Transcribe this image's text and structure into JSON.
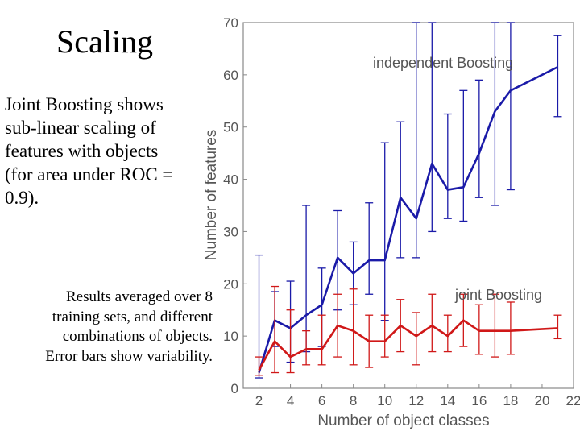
{
  "slide": {
    "title": "Scaling",
    "main_text": "Joint Boosting shows sub-linear scaling of features with objects (for area under ROC = 0.9).",
    "note_text": "Results averaged over 8 training sets, and different combinations of objects.  Error bars show variability."
  },
  "chart_data": {
    "type": "line",
    "xlabel": "Number of object classes",
    "ylabel": "Number of features",
    "xlim": [
      1,
      22
    ],
    "ylim": [
      0,
      70
    ],
    "xticks": [
      2,
      4,
      6,
      8,
      10,
      12,
      14,
      16,
      18,
      20,
      22
    ],
    "yticks": [
      0,
      10,
      20,
      30,
      40,
      50,
      60,
      70
    ],
    "grid": false,
    "series": [
      {
        "name": "independent Boosting",
        "color": "#1a1aa8",
        "x": [
          2,
          3,
          4,
          5,
          6,
          7,
          8,
          9,
          10,
          11,
          12,
          13,
          14,
          15,
          16,
          17,
          18,
          21
        ],
        "y": [
          3,
          13,
          11.5,
          14,
          16,
          25,
          22,
          24.5,
          24.5,
          36.5,
          32.5,
          43,
          38,
          38.5,
          45,
          53,
          57,
          61.5
        ],
        "err_low": [
          2,
          8,
          5,
          7,
          8,
          15,
          16,
          18,
          13,
          25,
          25,
          30,
          32.5,
          32,
          36.5,
          35,
          38,
          52
        ],
        "err_high": [
          25.5,
          18.5,
          20.5,
          35,
          23,
          34,
          28,
          35.5,
          47,
          51,
          70,
          70,
          52.5,
          57,
          59,
          70,
          70,
          67.5
        ]
      },
      {
        "name": "joint Boosting",
        "color": "#d01818",
        "x": [
          2,
          3,
          4,
          5,
          6,
          7,
          8,
          9,
          10,
          11,
          12,
          13,
          14,
          15,
          16,
          17,
          18,
          21
        ],
        "y": [
          3.5,
          9,
          6,
          7.5,
          7.5,
          12,
          11,
          9,
          9,
          12,
          10,
          12,
          10,
          13,
          11,
          11,
          11,
          11.5
        ],
        "err_low": [
          2.5,
          3,
          3,
          4.5,
          4.5,
          6,
          4.5,
          4,
          6,
          7,
          4.5,
          7,
          7,
          8,
          6.5,
          6,
          6.5,
          9.5
        ],
        "err_high": [
          6,
          19.5,
          15,
          11,
          14,
          18,
          19,
          14,
          14,
          17,
          14.5,
          18,
          14,
          18,
          16,
          18,
          16.5,
          14
        ]
      }
    ]
  }
}
